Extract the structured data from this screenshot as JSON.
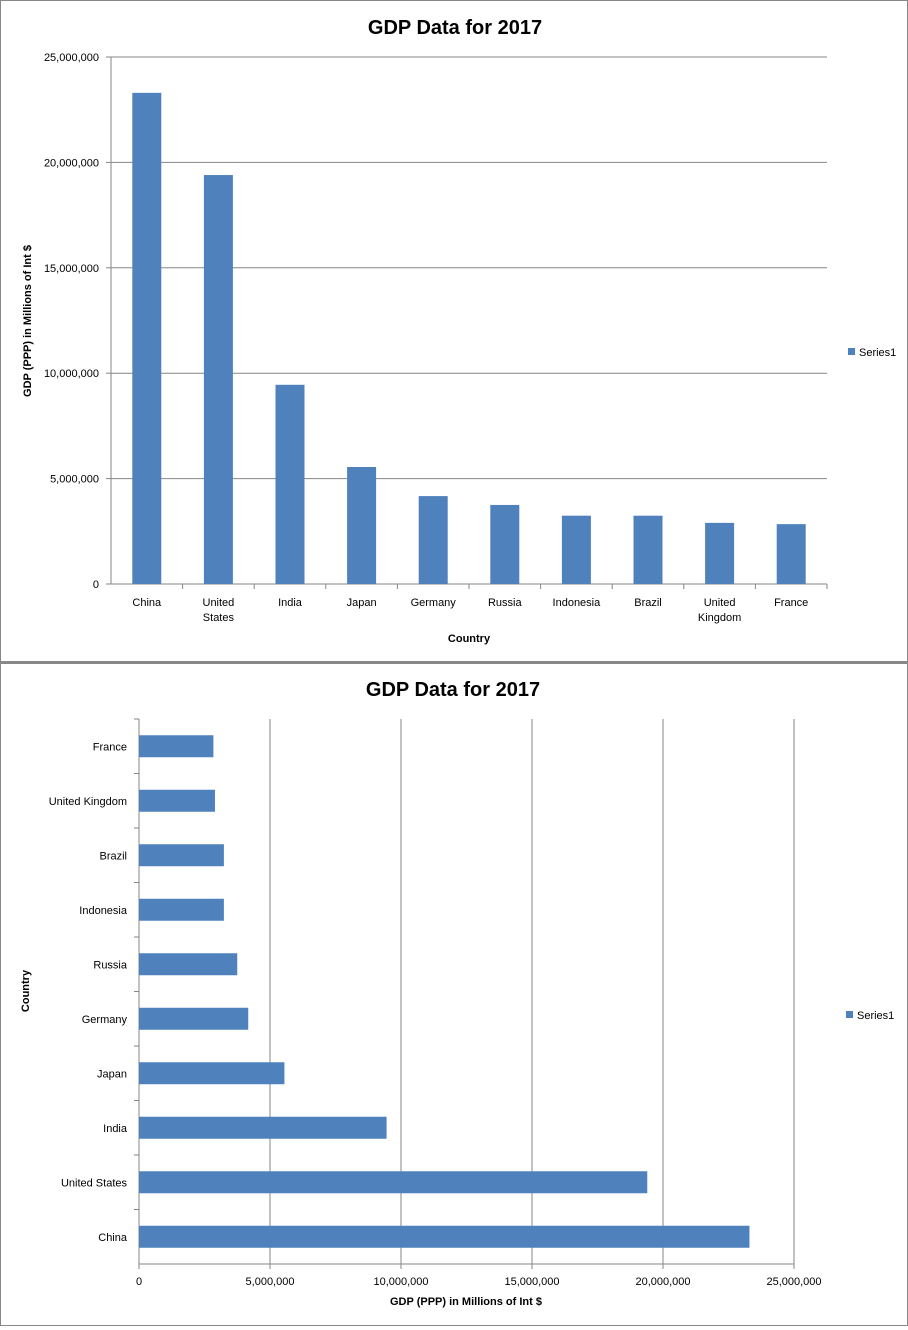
{
  "chart_data": [
    {
      "type": "bar",
      "orientation": "vertical",
      "title": "GDP Data for 2017",
      "xlabel": "Country",
      "ylabel": "GDP (PPP) in Millions of Int $",
      "categories": [
        "China",
        "United States",
        "India",
        "Japan",
        "Germany",
        "Russia",
        "Indonesia",
        "Brazil",
        "United Kingdom",
        "France"
      ],
      "series": [
        {
          "name": "Series1",
          "values": [
            23300000,
            19400000,
            9450000,
            5550000,
            4170000,
            3750000,
            3240000,
            3240000,
            2900000,
            2840000
          ]
        }
      ],
      "ylim": [
        0,
        25000000
      ],
      "yticks": [
        "0",
        "5,000,000",
        "10,000,000",
        "15,000,000",
        "20,000,000",
        "25,000,000"
      ],
      "grid": true,
      "legend": "right",
      "color": "#4F81BD"
    },
    {
      "type": "bar",
      "orientation": "horizontal",
      "title": "GDP Data for 2017",
      "xlabel": "GDP (PPP) in Millions of Int $",
      "ylabel": "Country",
      "categories": [
        "China",
        "United States",
        "India",
        "Japan",
        "Germany",
        "Russia",
        "Indonesia",
        "Brazil",
        "United Kingdom",
        "France"
      ],
      "series": [
        {
          "name": "Series1",
          "values": [
            23300000,
            19400000,
            9450000,
            5550000,
            4170000,
            3750000,
            3240000,
            3240000,
            2900000,
            2840000
          ]
        }
      ],
      "xlim": [
        0,
        25000000
      ],
      "xticks": [
        "0",
        "5,000,000",
        "10,000,000",
        "15,000,000",
        "20,000,000",
        "25,000,000"
      ],
      "grid": true,
      "legend": "right",
      "color": "#4F81BD"
    }
  ]
}
